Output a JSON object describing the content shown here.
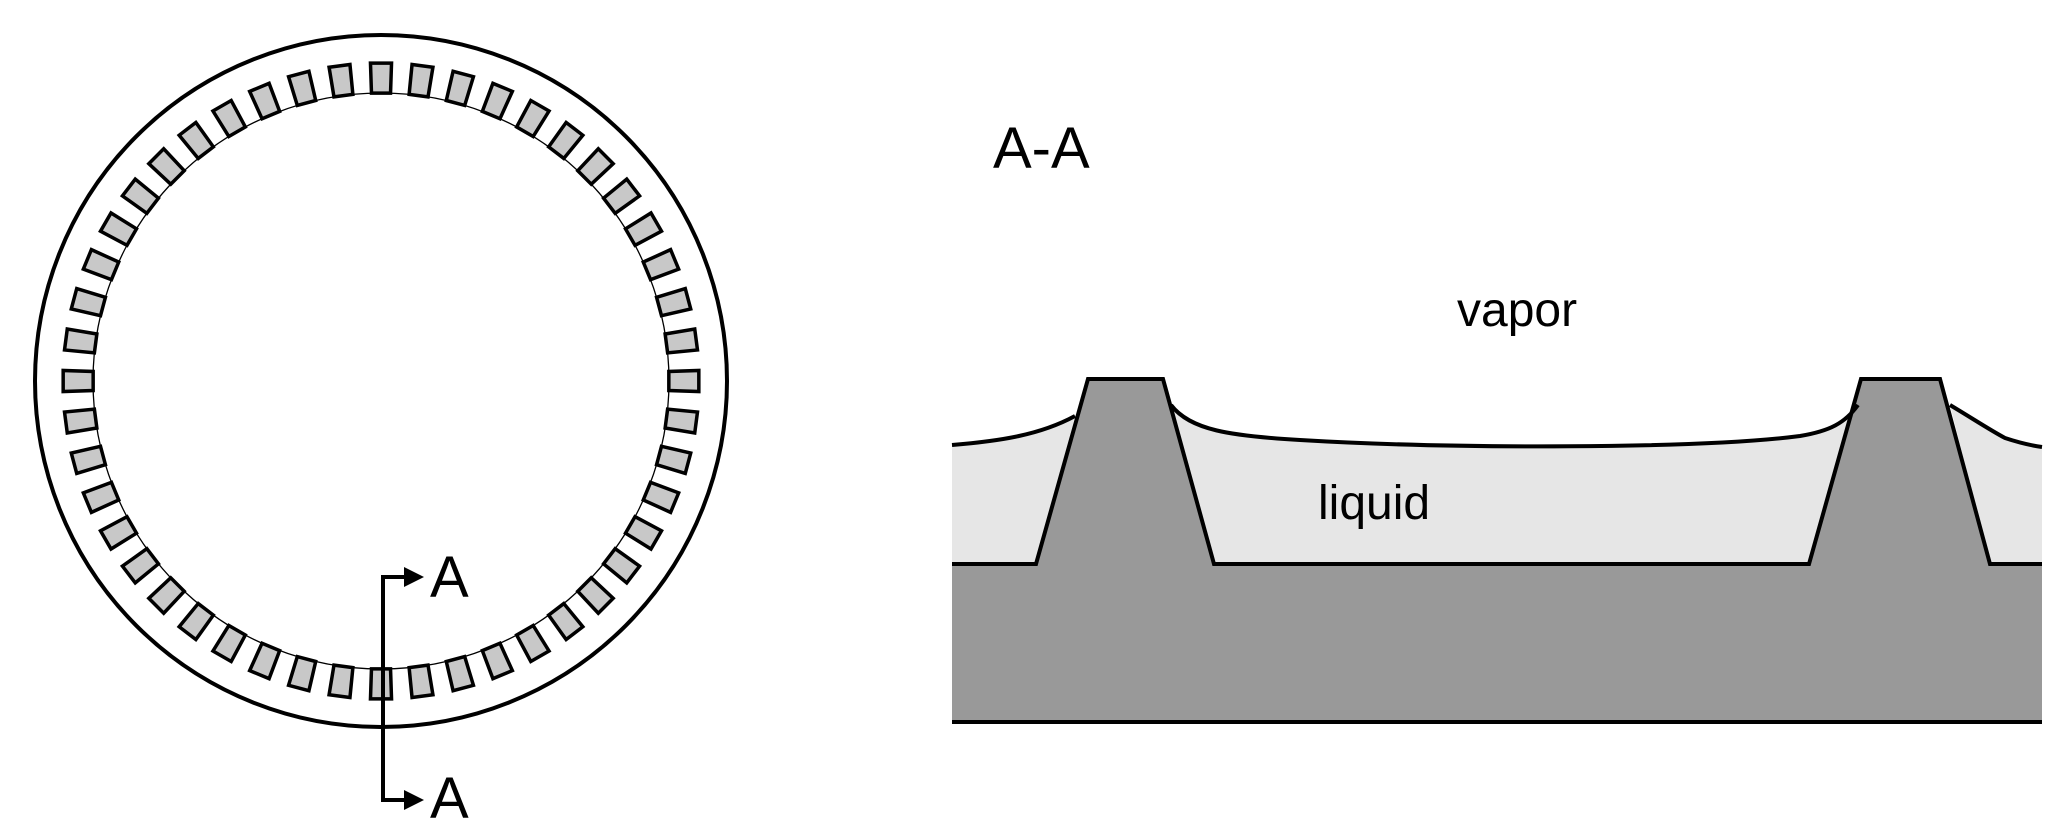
{
  "top_view": {
    "section_label_top": "A",
    "section_label_bottom": "A",
    "groove_count": 48
  },
  "section_view": {
    "title": "A-A",
    "vapor_label": "vapor",
    "liquid_label": "liquid"
  },
  "colors": {
    "line": "#000000",
    "solid": "#999999",
    "liquid": "#e6e6e6",
    "groove_fill": "#c8c8c8",
    "background": "#ffffff"
  }
}
